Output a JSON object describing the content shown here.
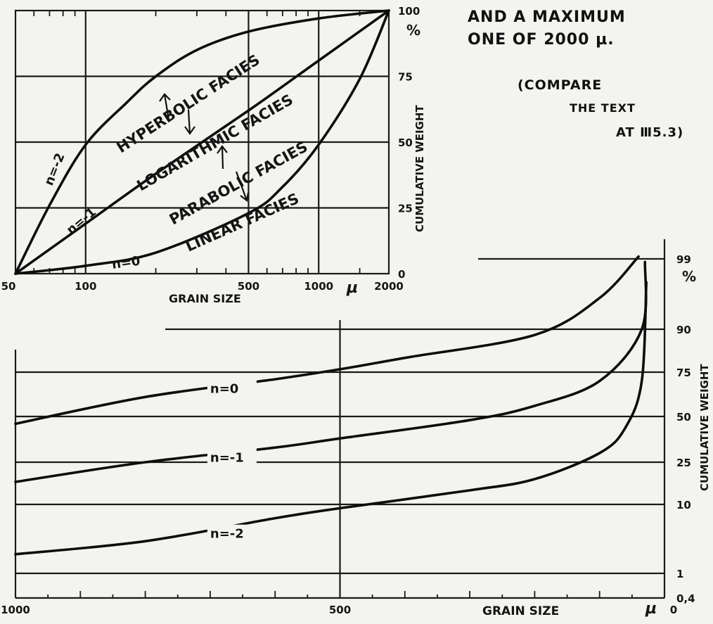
{
  "notes": {
    "line1": "AND A MAXIMUM",
    "line2": "ONE OF 2000 µ.",
    "line3": "(COMPARE",
    "line4": "THE TEXT",
    "line5": "AT Ⅲ5.3)"
  },
  "chart_data": [
    {
      "type": "line",
      "xlabel": "GRAIN SIZE",
      "ylabel": "CUMULATIVE WEIGHT",
      "xunit": "µ",
      "yunit": "%",
      "xscale": "log",
      "xlim": [
        50,
        2000
      ],
      "ylim": [
        0,
        100
      ],
      "xticks": [
        "50",
        "100",
        "500",
        "1000",
        "2000"
      ],
      "yticks": [
        "0",
        "25",
        "50",
        "75",
        "100"
      ],
      "grid": true,
      "annotations": [
        "HYPERBOLIC FACIES",
        "LOGARITHMIC FACIES",
        "PARABOLIC FACIES",
        "LINEAR FACIES"
      ],
      "series": [
        {
          "name": "n=-2",
          "x": [
            50,
            70,
            100,
            150,
            200,
            300,
            500,
            1000,
            2000
          ],
          "y": [
            0,
            26,
            49,
            65,
            75,
            85,
            92,
            97,
            100
          ]
        },
        {
          "name": "n=-1",
          "x": [
            50,
            100,
            200,
            500,
            1000,
            2000
          ],
          "y": [
            0,
            19,
            38,
            62,
            81,
            100
          ]
        },
        {
          "name": "n=0",
          "x": [
            50,
            100,
            200,
            500,
            700,
            1000,
            1500,
            2000
          ],
          "y": [
            0,
            3,
            8,
            23,
            33,
            49,
            74,
            100
          ]
        }
      ]
    },
    {
      "type": "line",
      "xlabel": "GRAIN SIZE",
      "ylabel": "CUMULATIVE WEIGHT",
      "xunit": "µ",
      "yunit": "%",
      "xlim": [
        1000,
        0
      ],
      "ylim": [
        0.4,
        99
      ],
      "xticks": [
        "1000",
        "500",
        "0"
      ],
      "yticks": [
        "0,4",
        "1",
        "10",
        "25",
        "50",
        "75",
        "90",
        "99"
      ],
      "grid": true,
      "series": [
        {
          "name": "n=0",
          "x": [
            1000,
            800,
            600,
            500,
            400,
            200,
            100,
            40
          ],
          "y": [
            46,
            61,
            71,
            76,
            80,
            88,
            94,
            99.3
          ]
        },
        {
          "name": "n=-1",
          "x": [
            1000,
            800,
            600,
            500,
            300,
            200,
            100,
            35,
            30
          ],
          "y": [
            18,
            25,
            33,
            38,
            48,
            56,
            70,
            90,
            98.6
          ]
        },
        {
          "name": "n=-2",
          "x": [
            1000,
            800,
            600,
            500,
            300,
            200,
            100,
            60,
            35,
            28
          ],
          "y": [
            3.5,
            5.2,
            8.2,
            9.5,
            15,
            19,
            30,
            44,
            70,
            96
          ]
        }
      ]
    }
  ]
}
